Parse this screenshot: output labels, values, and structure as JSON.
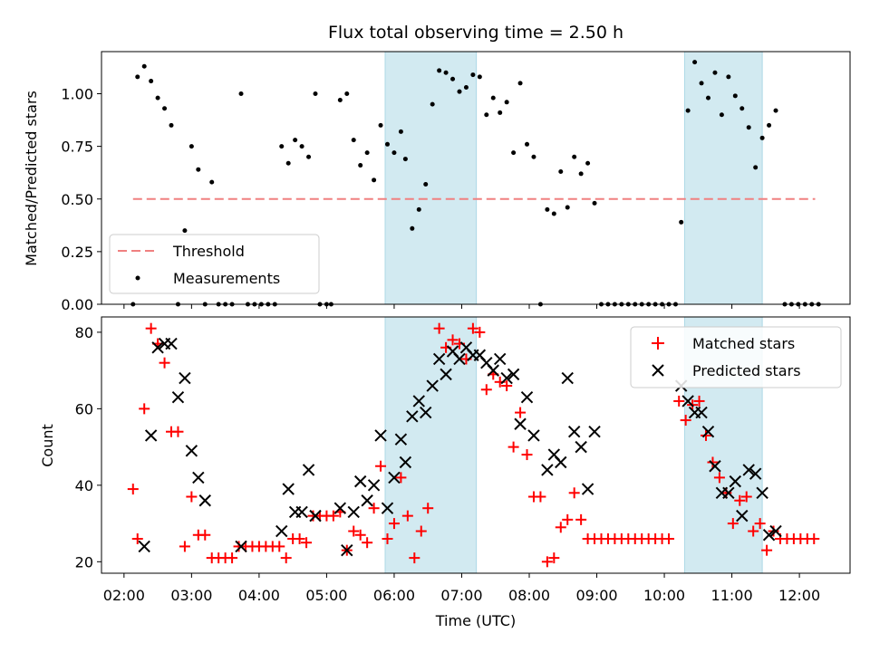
{
  "chart_data": {
    "type": "scatter",
    "title": "Flux total observing time = 2.50 h",
    "colors": {
      "matched": "#ff0000",
      "predicted": "#000000",
      "measurements": "#000000",
      "threshold": "#f08080",
      "window": "#add8e6"
    },
    "x_axis": {
      "xlabel": "Time (UTC)",
      "xlim": [
        "01:40",
        "12:45"
      ],
      "tick_labels": [
        "02:00",
        "03:00",
        "04:00",
        "05:00",
        "06:00",
        "07:00",
        "08:00",
        "09:00",
        "10:00",
        "11:00",
        "12:00"
      ]
    },
    "observing_windows": [
      [
        "05:52",
        "07:13"
      ],
      [
        "10:18",
        "11:27"
      ]
    ],
    "top_panel": {
      "ylabel": "Matched/Predicted stars",
      "ylim": [
        0,
        1.2
      ],
      "y_tick_labels": [
        "0.00",
        "0.25",
        "0.50",
        "0.75",
        "1.00"
      ],
      "threshold": {
        "name": "Threshold",
        "value": 0.5,
        "x_range": [
          "02:08",
          "12:14"
        ]
      },
      "legend": {
        "placement": "lower left",
        "entries": [
          "Threshold",
          "Measurements"
        ]
      },
      "measurements": {
        "name": "Measurements",
        "points": [
          [
            "02:08",
            0.0
          ],
          [
            "02:12",
            1.08
          ],
          [
            "02:18",
            1.13
          ],
          [
            "02:24",
            1.06
          ],
          [
            "02:30",
            0.98
          ],
          [
            "02:36",
            0.93
          ],
          [
            "02:42",
            0.85
          ],
          [
            "02:48",
            0.0
          ],
          [
            "02:54",
            0.35
          ],
          [
            "03:00",
            0.75
          ],
          [
            "03:06",
            0.64
          ],
          [
            "03:12",
            0.0
          ],
          [
            "03:18",
            0.58
          ],
          [
            "03:24",
            0.0
          ],
          [
            "03:30",
            0.0
          ],
          [
            "03:36",
            0.0
          ],
          [
            "03:44",
            1.0
          ],
          [
            "03:50",
            0.0
          ],
          [
            "03:56",
            0.0
          ],
          [
            "04:02",
            0.0
          ],
          [
            "04:08",
            0.0
          ],
          [
            "04:14",
            0.0
          ],
          [
            "04:20",
            0.75
          ],
          [
            "04:26",
            0.67
          ],
          [
            "04:32",
            0.78
          ],
          [
            "04:38",
            0.75
          ],
          [
            "04:44",
            0.7
          ],
          [
            "04:50",
            1.0
          ],
          [
            "04:54",
            0.0
          ],
          [
            "05:00",
            0.0
          ],
          [
            "05:04",
            0.0
          ],
          [
            "05:12",
            0.97
          ],
          [
            "05:18",
            1.0
          ],
          [
            "05:24",
            0.78
          ],
          [
            "05:30",
            0.66
          ],
          [
            "05:36",
            0.72
          ],
          [
            "05:42",
            0.59
          ],
          [
            "05:48",
            0.85
          ],
          [
            "05:54",
            0.76
          ],
          [
            "06:00",
            0.72
          ],
          [
            "06:06",
            0.82
          ],
          [
            "06:10",
            0.69
          ],
          [
            "06:16",
            0.36
          ],
          [
            "06:22",
            0.45
          ],
          [
            "06:28",
            0.57
          ],
          [
            "06:34",
            0.95
          ],
          [
            "06:40",
            1.11
          ],
          [
            "06:46",
            1.1
          ],
          [
            "06:52",
            1.07
          ],
          [
            "06:58",
            1.01
          ],
          [
            "07:04",
            1.03
          ],
          [
            "07:10",
            1.09
          ],
          [
            "07:16",
            1.08
          ],
          [
            "07:22",
            0.9
          ],
          [
            "07:28",
            0.98
          ],
          [
            "07:34",
            0.91
          ],
          [
            "07:40",
            0.96
          ],
          [
            "07:46",
            0.72
          ],
          [
            "07:52",
            1.05
          ],
          [
            "07:58",
            0.76
          ],
          [
            "08:04",
            0.7
          ],
          [
            "08:10",
            0.0
          ],
          [
            "08:16",
            0.45
          ],
          [
            "08:22",
            0.43
          ],
          [
            "08:28",
            0.63
          ],
          [
            "08:34",
            0.46
          ],
          [
            "08:40",
            0.7
          ],
          [
            "08:46",
            0.62
          ],
          [
            "08:52",
            0.67
          ],
          [
            "08:58",
            0.48
          ],
          [
            "10:15",
            0.39
          ],
          [
            "10:21",
            0.92
          ],
          [
            "10:27",
            1.15
          ],
          [
            "10:33",
            1.05
          ],
          [
            "10:39",
            0.98
          ],
          [
            "10:45",
            1.1
          ],
          [
            "10:51",
            0.9
          ],
          [
            "10:57",
            1.08
          ],
          [
            "11:03",
            0.99
          ],
          [
            "11:09",
            0.93
          ],
          [
            "11:15",
            0.84
          ],
          [
            "11:21",
            0.65
          ],
          [
            "11:27",
            0.79
          ],
          [
            "11:33",
            0.85
          ],
          [
            "11:39",
            0.92
          ]
        ],
        "zero_run_ranges": [
          [
            "09:04",
            "10:13",
            6
          ],
          [
            "11:47",
            "12:17",
            6
          ]
        ]
      }
    },
    "bottom_panel": {
      "ylabel": "Count",
      "ylim": [
        17,
        84
      ],
      "y_tick_labels": [
        "20",
        "40",
        "60",
        "80"
      ],
      "legend": {
        "placement": "upper right",
        "entries": [
          "Matched stars",
          "Predicted stars"
        ]
      },
      "series": [
        {
          "name": "Matched stars",
          "marker": "plus",
          "points": [
            [
              "02:08",
              39
            ],
            [
              "02:12",
              26
            ],
            [
              "02:18",
              60
            ],
            [
              "02:24",
              81
            ],
            [
              "02:30",
              77
            ],
            [
              "02:36",
              72
            ],
            [
              "02:42",
              54
            ],
            [
              "02:48",
              54
            ],
            [
              "02:54",
              24
            ],
            [
              "03:00",
              37
            ],
            [
              "03:06",
              27
            ],
            [
              "03:12",
              27
            ],
            [
              "03:18",
              21
            ],
            [
              "03:24",
              21
            ],
            [
              "03:30",
              21
            ],
            [
              "03:36",
              21
            ],
            [
              "03:42",
              24
            ],
            [
              "03:48",
              24
            ],
            [
              "03:54",
              24
            ],
            [
              "04:00",
              24
            ],
            [
              "04:06",
              24
            ],
            [
              "04:12",
              24
            ],
            [
              "04:18",
              24
            ],
            [
              "04:24",
              21
            ],
            [
              "04:30",
              26
            ],
            [
              "04:36",
              26
            ],
            [
              "04:42",
              25
            ],
            [
              "04:48",
              32
            ],
            [
              "04:54",
              32
            ],
            [
              "05:00",
              32
            ],
            [
              "05:06",
              32
            ],
            [
              "05:12",
              33
            ],
            [
              "05:18",
              23
            ],
            [
              "05:24",
              28
            ],
            [
              "05:30",
              27
            ],
            [
              "05:36",
              25
            ],
            [
              "05:42",
              34
            ],
            [
              "05:48",
              45
            ],
            [
              "05:54",
              26
            ],
            [
              "06:00",
              30
            ],
            [
              "06:06",
              42
            ],
            [
              "06:12",
              32
            ],
            [
              "06:18",
              21
            ],
            [
              "06:24",
              28
            ],
            [
              "06:30",
              34
            ],
            [
              "06:40",
              81
            ],
            [
              "06:46",
              76
            ],
            [
              "06:52",
              78
            ],
            [
              "06:58",
              77
            ],
            [
              "07:04",
              73
            ],
            [
              "07:10",
              81
            ],
            [
              "07:16",
              80
            ],
            [
              "07:22",
              65
            ],
            [
              "07:28",
              69
            ],
            [
              "07:34",
              67
            ],
            [
              "07:40",
              66
            ],
            [
              "07:46",
              50
            ],
            [
              "07:52",
              59
            ],
            [
              "07:58",
              48
            ],
            [
              "08:04",
              37
            ],
            [
              "08:10",
              37
            ],
            [
              "08:16",
              20
            ],
            [
              "08:22",
              21
            ],
            [
              "08:28",
              29
            ],
            [
              "08:34",
              31
            ],
            [
              "08:40",
              38
            ],
            [
              "08:46",
              31
            ],
            [
              "08:52",
              26
            ],
            [
              "10:13",
              62
            ],
            [
              "10:19",
              57
            ],
            [
              "10:25",
              61
            ],
            [
              "10:31",
              62
            ],
            [
              "10:37",
              53
            ],
            [
              "10:43",
              46
            ],
            [
              "10:49",
              42
            ],
            [
              "10:55",
              38
            ],
            [
              "11:01",
              30
            ],
            [
              "11:07",
              36
            ],
            [
              "11:13",
              37
            ],
            [
              "11:19",
              28
            ],
            [
              "11:25",
              30
            ],
            [
              "11:31",
              23
            ],
            [
              "11:37",
              28
            ]
          ],
          "constant_runs": [
            {
              "from": "08:58",
              "to": "10:07",
              "step_min": 6,
              "value": 26
            },
            {
              "from": "11:43",
              "to": "12:13",
              "step_min": 6,
              "value": 26
            }
          ]
        },
        {
          "name": "Predicted stars",
          "marker": "x",
          "points": [
            [
              "02:18",
              24
            ],
            [
              "02:24",
              53
            ],
            [
              "02:30",
              76
            ],
            [
              "02:36",
              77
            ],
            [
              "02:42",
              77
            ],
            [
              "02:48",
              63
            ],
            [
              "02:54",
              68
            ],
            [
              "03:00",
              49
            ],
            [
              "03:06",
              42
            ],
            [
              "03:12",
              36
            ],
            [
              "03:44",
              24
            ],
            [
              "04:20",
              28
            ],
            [
              "04:26",
              39
            ],
            [
              "04:32",
              33
            ],
            [
              "04:38",
              33
            ],
            [
              "04:44",
              44
            ],
            [
              "04:50",
              32
            ],
            [
              "05:12",
              34
            ],
            [
              "05:18",
              23
            ],
            [
              "05:24",
              33
            ],
            [
              "05:30",
              41
            ],
            [
              "05:36",
              36
            ],
            [
              "05:42",
              40
            ],
            [
              "05:48",
              53
            ],
            [
              "05:54",
              34
            ],
            [
              "06:00",
              42
            ],
            [
              "06:06",
              52
            ],
            [
              "06:10",
              46
            ],
            [
              "06:16",
              58
            ],
            [
              "06:22",
              62
            ],
            [
              "06:28",
              59
            ],
            [
              "06:34",
              66
            ],
            [
              "06:40",
              73
            ],
            [
              "06:46",
              69
            ],
            [
              "06:52",
              75
            ],
            [
              "06:58",
              73
            ],
            [
              "07:04",
              76
            ],
            [
              "07:10",
              74
            ],
            [
              "07:16",
              74
            ],
            [
              "07:22",
              72
            ],
            [
              "07:28",
              70
            ],
            [
              "07:34",
              73
            ],
            [
              "07:40",
              68
            ],
            [
              "07:46",
              69
            ],
            [
              "07:52",
              56
            ],
            [
              "07:58",
              63
            ],
            [
              "08:04",
              53
            ],
            [
              "08:16",
              44
            ],
            [
              "08:22",
              48
            ],
            [
              "08:28",
              46
            ],
            [
              "08:34",
              68
            ],
            [
              "08:40",
              54
            ],
            [
              "08:46",
              50
            ],
            [
              "08:52",
              39
            ],
            [
              "08:58",
              54
            ],
            [
              "10:15",
              66
            ],
            [
              "10:21",
              62
            ],
            [
              "10:27",
              59
            ],
            [
              "10:33",
              59
            ],
            [
              "10:39",
              54
            ],
            [
              "10:45",
              45
            ],
            [
              "10:51",
              38
            ],
            [
              "10:57",
              38
            ],
            [
              "11:03",
              41
            ],
            [
              "11:09",
              32
            ],
            [
              "11:15",
              44
            ],
            [
              "11:21",
              43
            ],
            [
              "11:27",
              38
            ],
            [
              "11:33",
              27
            ],
            [
              "11:39",
              28
            ]
          ]
        }
      ]
    }
  }
}
